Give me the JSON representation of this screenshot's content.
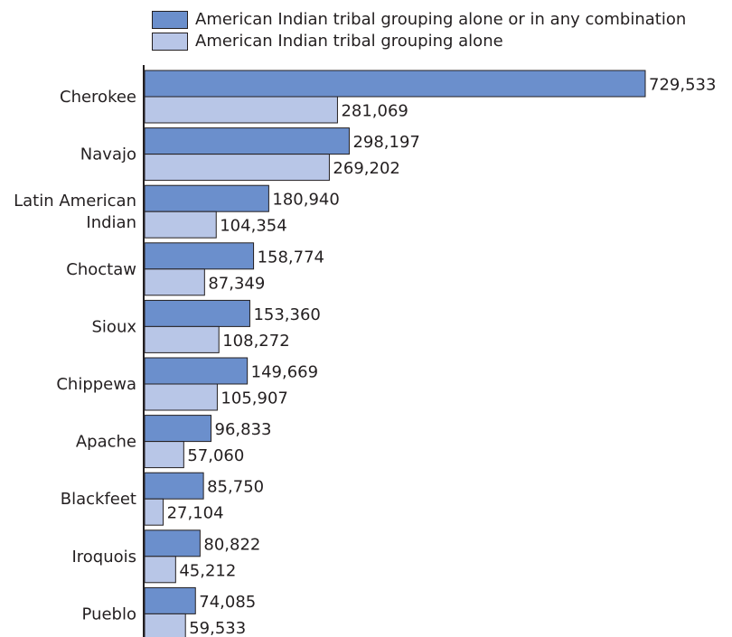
{
  "chart_data": {
    "type": "bar",
    "orientation": "horizontal",
    "categories": [
      [
        "Cherokee"
      ],
      [
        "Navajo"
      ],
      [
        "Latin American",
        "Indian"
      ],
      [
        "Choctaw"
      ],
      [
        "Sioux"
      ],
      [
        "Chippewa"
      ],
      [
        "Apache"
      ],
      [
        "Blackfeet"
      ],
      [
        "Iroquois"
      ],
      [
        "Pueblo"
      ]
    ],
    "series": [
      {
        "name": "American Indian tribal grouping alone or in any combination",
        "color": "#6b8fcc",
        "values": [
          729533,
          298197,
          180940,
          158774,
          153360,
          149669,
          96833,
          85750,
          80822,
          74085
        ],
        "labels": [
          "729,533",
          "298,197",
          "180,940",
          "158,774",
          "153,360",
          "149,669",
          "96,833",
          "85,750",
          "80,822",
          "74,085"
        ]
      },
      {
        "name": "American Indian tribal grouping alone",
        "color": "#b8c6e7",
        "values": [
          281069,
          269202,
          104354,
          87349,
          108272,
          105907,
          57060,
          27104,
          45212,
          59533
        ],
        "labels": [
          "281,069",
          "269,202",
          "104,354",
          "87,349",
          "108,272",
          "105,907",
          "57,060",
          "27,104",
          "45,212",
          "59,533"
        ]
      }
    ],
    "xlim": [
      0,
      729533
    ],
    "legend_position": "top",
    "grid": false
  }
}
